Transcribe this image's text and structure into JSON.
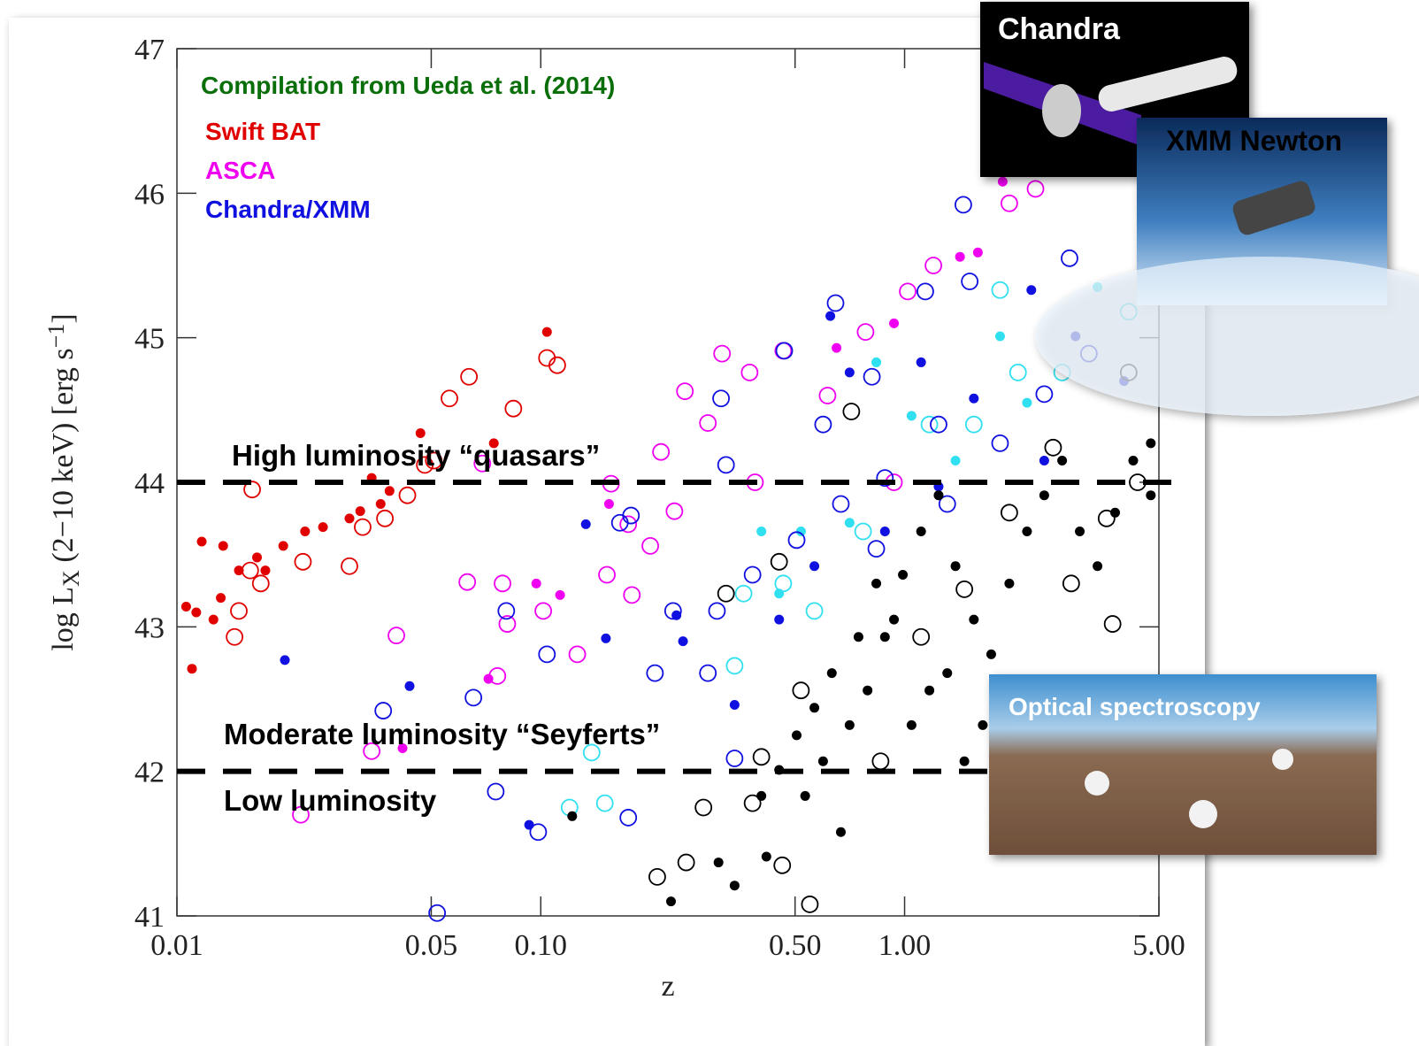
{
  "chart_data": {
    "type": "scatter",
    "title": "Compilation from Ueda et al. (2014)",
    "xlabel": "z",
    "ylabel": [
      "log L",
      "X",
      " (2−10 keV) [erg s",
      "−1",
      "]"
    ],
    "xscale": "log",
    "xlim": [
      0.01,
      5
    ],
    "ylim": [
      41,
      47
    ],
    "xticks": [
      0.01,
      0.05,
      {
        "value": 0.1,
        "label": "0.10"
      },
      {
        "value": 0.5,
        "label": "0.50"
      },
      {
        "value": 1,
        "label": "1.00"
      },
      {
        "value": 5,
        "label": "5.00"
      }
    ],
    "yticks": [
      41,
      42,
      43,
      44,
      45,
      46,
      47
    ],
    "hlines": [
      44,
      42
    ],
    "annotations": [
      {
        "text": "High luminosity “quasars”",
        "y": 44
      },
      {
        "text": "Moderate luminosity “Seyferts”",
        "y": 42
      },
      {
        "text": "Low luminosity",
        "y": 42
      }
    ],
    "insets": [
      {
        "label": "Chandra"
      },
      {
        "label": "XMM Newton"
      },
      {
        "label": "Optical spectroscopy"
      }
    ],
    "series": [
      {
        "name": "Swift BAT",
        "color": "#e00000",
        "groups": [
          {
            "marker": "filled",
            "color": "#e00000",
            "x": [
              0.0106,
              0.0113,
              0.011,
              0.0117,
              0.0126,
              0.0132,
              0.0134,
              0.0148,
              0.0166,
              0.0175,
              0.0196,
              0.0225,
              0.0252,
              0.0298,
              0.0319,
              0.0343,
              0.0363,
              0.0384,
              0.0467,
              0.0743,
              0.104
            ],
            "y": [
              43.14,
              43.1,
              42.71,
              43.59,
              43.05,
              43.2,
              43.56,
              43.39,
              43.48,
              43.39,
              43.56,
              43.66,
              43.69,
              43.75,
              43.8,
              44.03,
              43.85,
              43.94,
              44.34,
              44.27,
              45.04
            ]
          },
          {
            "marker": "open",
            "color": "#e00000",
            "x": [
              0.0144,
              0.0148,
              0.0159,
              0.017,
              0.0222,
              0.0298,
              0.0324,
              0.0373,
              0.043,
              0.048,
              0.0561,
              0.0635,
              0.0841,
              0.104,
              0.111,
              0.0161,
              0.0508
            ],
            "y": [
              42.93,
              43.11,
              43.39,
              43.3,
              43.45,
              43.42,
              43.69,
              43.75,
              43.91,
              44.12,
              44.58,
              44.73,
              44.51,
              44.86,
              44.81,
              43.95,
              44.15
            ]
          }
        ]
      },
      {
        "name": "ASCA",
        "color": "#f000f0",
        "groups": [
          {
            "marker": "filled",
            "color": "#f000f0",
            "x": [
              0.0718,
              0.0972,
              0.113,
              0.154,
              1.42,
              1.59,
              1.86,
              0.0417,
              0.65,
              0.935
            ],
            "y": [
              42.64,
              43.3,
              43.22,
              43.85,
              45.56,
              45.59,
              46.08,
              42.16,
              44.93,
              45.1
            ]
          },
          {
            "marker": "open",
            "color": "#f000f0",
            "x": [
              0.0219,
              0.0401,
              0.0628,
              0.0785,
              0.0809,
              0.1016,
              0.126,
              0.152,
              0.178,
              0.2,
              0.214,
              0.249,
              0.288,
              0.315,
              0.375,
              0.464,
              0.614,
              0.781,
              1.02,
              1.2,
              1.94,
              2.29,
              0.935,
              0.0691,
              0.156,
              0.174,
              0.388,
              0.0343,
              0.076,
              0.233
            ],
            "y": [
              41.7,
              42.94,
              43.31,
              43.3,
              43.02,
              43.11,
              42.81,
              43.36,
              43.22,
              43.56,
              44.21,
              44.63,
              44.41,
              44.89,
              44.76,
              44.91,
              44.6,
              45.04,
              45.32,
              45.5,
              45.93,
              46.03,
              44.0,
              44.13,
              43.99,
              43.71,
              44.0,
              42.14,
              42.66,
              43.8
            ]
          }
        ]
      },
      {
        "name": "Chandra/XMM",
        "color": "#1010e0",
        "groups": [
          {
            "marker": "open",
            "color": "#30e0f0",
            "x": [
              0.12,
              0.15,
              0.138,
              0.341,
              0.361,
              0.464,
              0.769,
              1.83,
              4.13,
              2.05,
              2.71,
              0.565,
              1.17,
              1.55
            ],
            "y": [
              41.75,
              41.78,
              42.13,
              42.73,
              43.23,
              43.3,
              43.66,
              45.33,
              45.18,
              44.76,
              44.76,
              43.11,
              44.4,
              44.4
            ]
          },
          {
            "marker": "filled",
            "color": "#30e0f0",
            "x": [
              0.404,
              0.519,
              0.836,
              1.045,
              1.83,
              3.39,
              1.38,
              0.706,
              0.452,
              2.17
            ],
            "y": [
              43.66,
              43.66,
              44.83,
              44.46,
              45.01,
              45.35,
              44.15,
              43.72,
              43.23,
              44.55
            ]
          },
          {
            "marker": "open",
            "color": "#1010e0",
            "x": [
              0.0519,
              0.0752,
              0.0984,
              0.104,
              0.0804,
              0.0369,
              0.0653,
              0.174,
              0.206,
              0.341,
              0.165,
              0.177,
              0.231,
              0.313,
              0.323,
              0.467,
              0.646,
              1.45,
              2.84,
              1.14,
              1.51,
              0.813,
              1.24,
              0.883,
              0.668,
              0.505,
              0.382,
              0.305,
              2.42,
              3.21,
              1.83,
              0.597,
              1.31,
              0.836,
              0.288
            ],
            "y": [
              41.02,
              41.86,
              41.58,
              42.81,
              43.11,
              42.42,
              42.51,
              41.68,
              42.68,
              42.09,
              43.72,
              43.77,
              43.11,
              44.58,
              44.12,
              44.91,
              45.24,
              45.92,
              45.55,
              45.32,
              45.39,
              44.73,
              44.4,
              44.03,
              43.85,
              43.6,
              43.36,
              43.11,
              44.61,
              44.89,
              44.27,
              44.4,
              43.85,
              43.54,
              42.68
            ]
          },
          {
            "marker": "filled",
            "color": "#1010e0",
            "x": [
              0.0198,
              0.0436,
              0.0929,
              0.133,
              0.151,
              0.236,
              0.246,
              0.341,
              0.625,
              2.23,
              4.01,
              0.706,
              1.11,
              1.55,
              2.42,
              0.883,
              0.565,
              0.452,
              1.24,
              2.95
            ],
            "y": [
              42.77,
              42.59,
              41.63,
              43.71,
              42.92,
              43.08,
              42.9,
              42.46,
              45.15,
              45.33,
              44.7,
              44.76,
              44.83,
              44.58,
              44.15,
              43.66,
              43.42,
              43.05,
              43.97,
              45.01
            ]
          }
        ]
      },
      {
        "color": "#000000",
        "groups": [
          {
            "marker": "filled",
            "color": "#000000",
            "x": [
              0.122,
              0.228,
              0.308,
              0.341,
              0.417,
              0.533,
              0.597,
              0.706,
              0.668,
              0.791,
              0.883,
              0.989,
              1.11,
              1.24,
              1.38,
              1.55,
              1.73,
              1.94,
              2.17,
              2.42,
              2.71,
              3.03,
              3.39,
              3.79,
              4.25,
              4.75,
              4.75,
              1.17,
              1.045,
              0.935,
              0.836,
              0.747,
              0.631,
              0.565,
              0.505,
              0.452,
              0.404,
              1.64,
              1.46,
              1.31
            ],
            "y": [
              41.69,
              41.1,
              41.37,
              41.21,
              41.41,
              41.83,
              42.07,
              42.32,
              41.58,
              42.56,
              42.93,
              43.36,
              43.66,
              43.91,
              43.42,
              43.05,
              42.81,
              43.3,
              43.66,
              43.91,
              44.15,
              43.66,
              43.42,
              43.79,
              44.15,
              43.91,
              44.27,
              42.56,
              42.32,
              43.05,
              43.3,
              42.93,
              42.68,
              42.44,
              42.25,
              42.01,
              41.83,
              42.32,
              42.07,
              42.68
            ]
          },
          {
            "marker": "open",
            "color": "#000000",
            "x": [
              0.209,
              0.251,
              0.28,
              0.382,
              0.461,
              0.549,
              0.404,
              0.519,
              0.714,
              0.859,
              1.11,
              1.46,
              1.94,
              2.56,
              3.59,
              3.73,
              4.13,
              4.37,
              2.87,
              0.323,
              0.452
            ],
            "y": [
              41.27,
              41.37,
              41.75,
              41.78,
              41.35,
              41.08,
              42.1,
              42.56,
              44.49,
              42.07,
              42.93,
              43.26,
              43.79,
              44.24,
              43.75,
              43.02,
              44.76,
              44.0,
              43.3,
              43.23,
              43.45
            ]
          }
        ]
      }
    ]
  }
}
